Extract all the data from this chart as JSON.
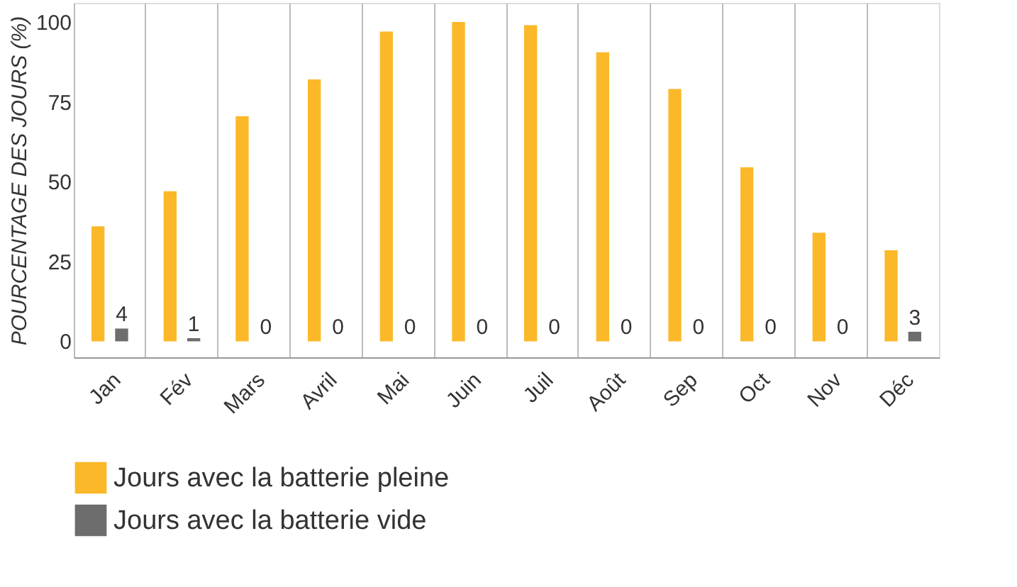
{
  "chart_data": {
    "type": "bar",
    "ylabel": "POURCENTAGE DES JOURS (%)",
    "categories": [
      "Jan",
      "Fév",
      "Mars",
      "Avril",
      "Mai",
      "Juin",
      "Juil",
      "Août",
      "Sep",
      "Oct",
      "Nov",
      "Déc"
    ],
    "series": [
      {
        "name": "Jours avec la batterie pleine",
        "color": "#fbb829",
        "values": [
          36,
          47,
          70.5,
          82,
          97,
          100,
          99,
          90.5,
          79,
          54.5,
          34,
          28.5
        ]
      },
      {
        "name": "Jours avec la batterie vide",
        "color": "#6d6d6d",
        "values": [
          4,
          1,
          0,
          0,
          0,
          0,
          0,
          0,
          0,
          0,
          0,
          3
        ],
        "value_labels": [
          "4",
          "1",
          "0",
          "0",
          "0",
          "0",
          "0",
          "0",
          "0",
          "0",
          "0",
          "3"
        ]
      }
    ],
    "ylim": [
      -5,
      106
    ],
    "yticks": [
      0,
      25,
      50,
      75,
      100
    ],
    "grid": "x",
    "legend": "bottom"
  }
}
